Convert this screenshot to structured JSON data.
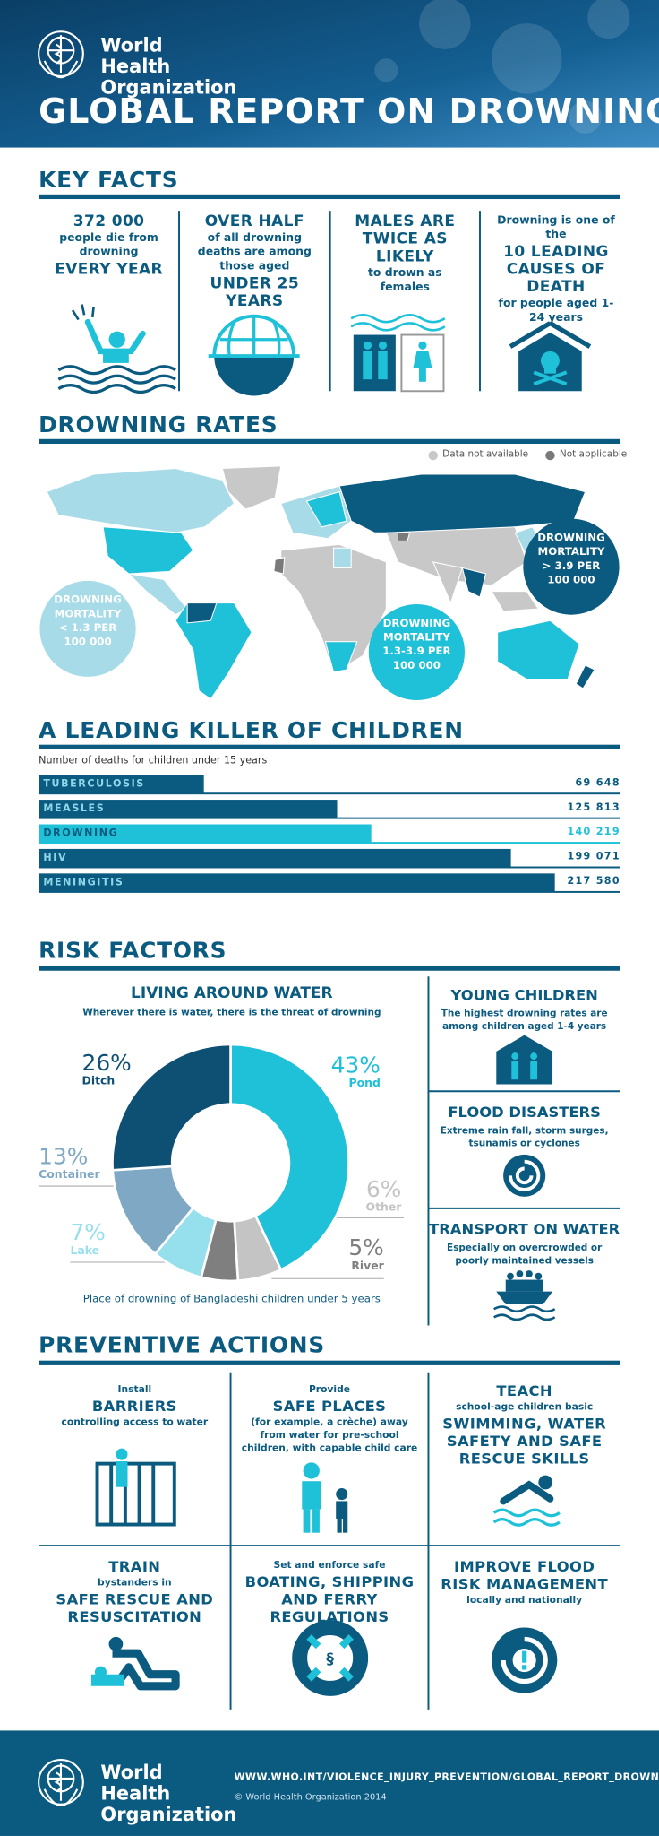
{
  "header": {
    "org": "World Health Organization",
    "title": "GLOBAL REPORT ON DROWNING"
  },
  "key_facts": {
    "title": "KEY FACTS",
    "items": [
      [
        {
          "text": "372 000",
          "em": true
        },
        {
          "text": "people die from drowning"
        },
        {
          "text": "EVERY YEAR",
          "em": true
        }
      ],
      [
        {
          "text": "OVER HALF",
          "em": true
        },
        {
          "text": "of all drowning deaths are among those aged"
        },
        {
          "text": "UNDER 25 YEARS",
          "em": true
        }
      ],
      [
        {
          "text": "MALES ARE TWICE AS LIKELY",
          "em": true
        },
        {
          "text": "to drown as females"
        }
      ],
      [
        {
          "text": "Drowning is one of the"
        },
        {
          "text": "10 LEADING CAUSES OF DEATH",
          "em": true
        },
        {
          "text": "for people aged 1-24 years"
        }
      ]
    ]
  },
  "drowning_rates": {
    "title": "DROWNING RATES",
    "legend": [
      "Data not available",
      "Not applicable"
    ],
    "bubbles": [
      "DROWNING MORTALITY < 1.3 PER 100 000",
      "DROWNING MORTALITY 1.3-3.9 PER 100 000",
      "DROWNING MORTALITY > 3.9 PER 100 000"
    ]
  },
  "children": {
    "title": "A LEADING KILLER OF CHILDREN",
    "subtitle": "Number of deaths for children under 15 years",
    "chart": {
      "type": "bar",
      "categories": [
        "TUBERCULOSIS",
        "MEASLES",
        "DROWNING",
        "HIV",
        "MENINGITIS"
      ],
      "values": [
        69648,
        125813,
        140219,
        199071,
        217580
      ],
      "value_labels": [
        "69 648",
        "125 813",
        "140 219",
        "199 071",
        "217 580"
      ],
      "colors": [
        "#0b5a80",
        "#0b5a80",
        "#1fc1d8",
        "#0b5a80",
        "#0b5a80"
      ]
    }
  },
  "risk_factors": {
    "title": "RISK FACTORS",
    "living_around_water": {
      "title": "LIVING AROUND WATER",
      "subtitle": "Wherever there is water, there is the threat of drowning",
      "caption": "Place of drowning of Bangladeshi children under 5 years",
      "chart": {
        "type": "donut",
        "categories": [
          "Pond",
          "Other",
          "River",
          "Lake",
          "Container",
          "Ditch"
        ],
        "values": [
          43,
          6,
          5,
          7,
          13,
          26
        ],
        "value_labels": [
          "43%",
          "6%",
          "5%",
          "7%",
          "13%",
          "26%"
        ],
        "colors": [
          "#1fc1d8",
          "#c4c4c4",
          "#7f7f7f",
          "#96dfec",
          "#7ea8c4",
          "#0e4f74"
        ]
      }
    },
    "side": [
      {
        "title": "YOUNG CHILDREN",
        "text": "The highest drowning rates are among children aged 1-4 years"
      },
      {
        "title": "FLOOD DISASTERS",
        "text": "Extreme rain fall, storm surges, tsunamis or cyclones"
      },
      {
        "title": "TRANSPORT ON WATER",
        "text": "Especially on overcrowded or poorly maintained vessels"
      }
    ]
  },
  "preventive_actions": {
    "title": "PREVENTIVE ACTIONS",
    "items": [
      [
        {
          "text": "Install"
        },
        {
          "text": "BARRIERS",
          "em": true
        },
        {
          "text": "controlling access to water"
        }
      ],
      [
        {
          "text": "Provide"
        },
        {
          "text": "SAFE PLACES",
          "em": true
        },
        {
          "text": "(for example, a crèche) away from water for pre-school children, with capable child care"
        }
      ],
      [
        {
          "text": "TEACH",
          "em": true
        },
        {
          "text": "school-age children basic"
        },
        {
          "text": "SWIMMING, WATER SAFETY AND SAFE RESCUE SKILLS",
          "em": true
        }
      ],
      [
        {
          "text": "TRAIN",
          "em": true
        },
        {
          "text": "bystanders in"
        },
        {
          "text": "SAFE RESCUE AND RESUSCITATION",
          "em": true
        }
      ],
      [
        {
          "text": "Set and enforce safe"
        },
        {
          "text": "BOATING, SHIPPING AND FERRY REGULATIONS",
          "em": true
        }
      ],
      [
        {
          "text": "IMPROVE FLOOD RISK MANAGEMENT",
          "em": true
        },
        {
          "text": "locally and nationally"
        }
      ]
    ]
  },
  "footer": {
    "org": "World Health Organization",
    "url": "WWW.WHO.INT/VIOLENCE_INJURY_PREVENTION/GLOBAL_REPORT_DROWNING",
    "copyright": "© World Health Organization 2014"
  }
}
